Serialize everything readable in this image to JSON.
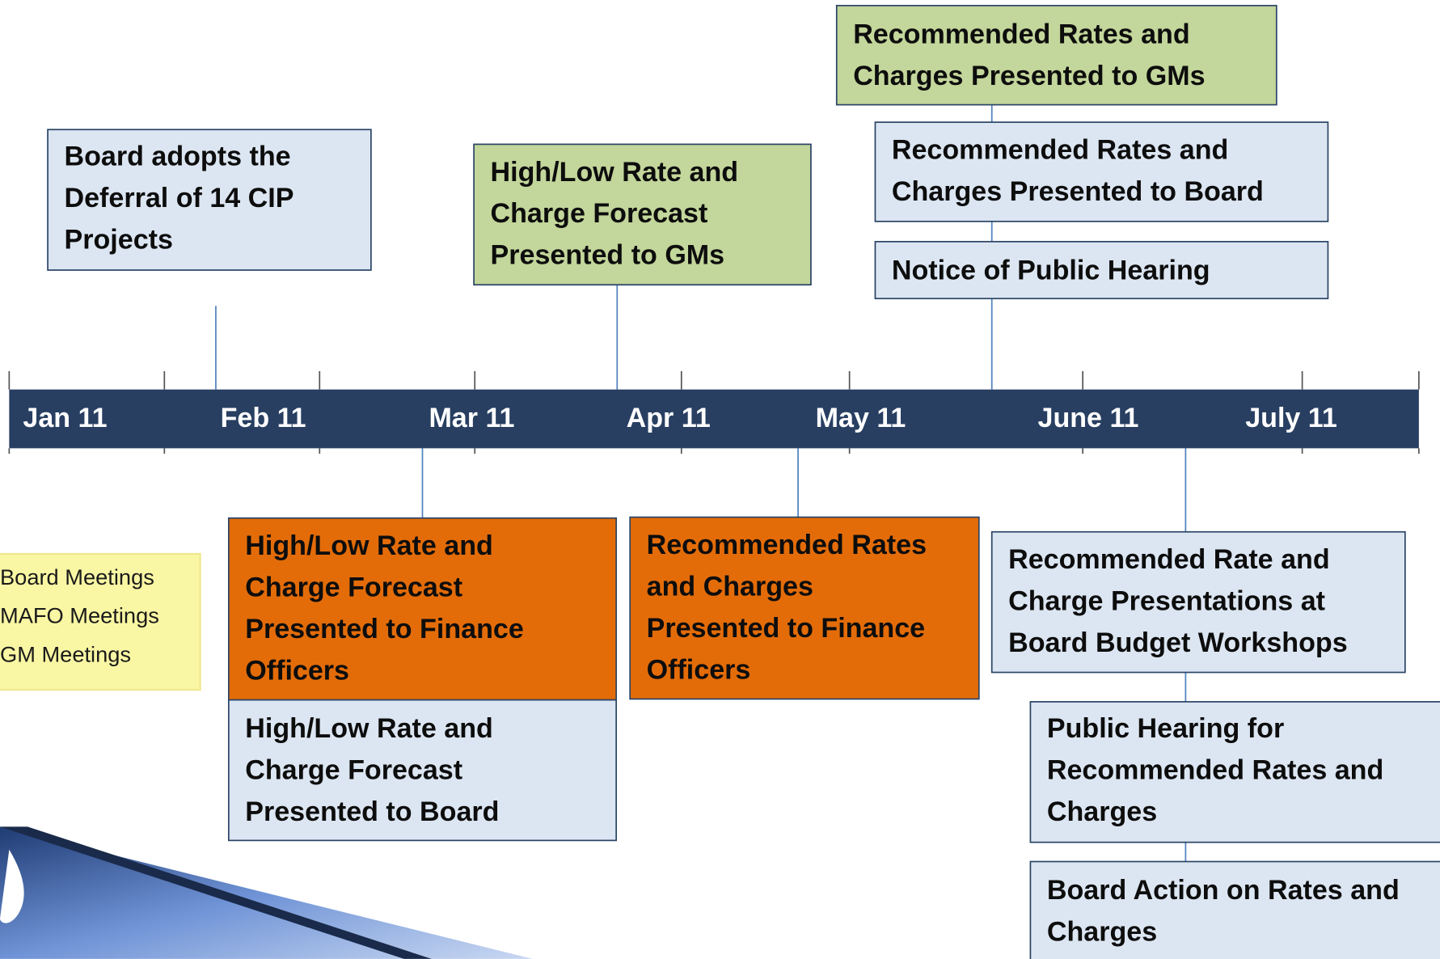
{
  "timeline": {
    "months": [
      "Jan 11",
      "Feb 11",
      "Mar 11",
      "Apr 11",
      "May 11",
      "June 11",
      "July 11"
    ]
  },
  "events": [
    {
      "lines": [
        "Board  adopts the",
        "Deferral of 14 CIP",
        "Projects"
      ]
    },
    {
      "lines": [
        "High/Low Rate and",
        "Charge Forecast",
        "Presented to GMs"
      ]
    },
    {
      "lines": [
        "Recommended Rates and",
        "Charges Presented to GMs"
      ]
    },
    {
      "lines": [
        "Recommended Rates and",
        "Charges Presented to Board"
      ]
    },
    {
      "lines": [
        "Notice of Public Hearing"
      ]
    },
    {
      "lines": [
        "High/Low Rate and",
        "Charge Forecast",
        "Presented  to Finance",
        "Officers"
      ]
    },
    {
      "lines": [
        "High/Low Rate and",
        "Charge Forecast",
        "Presented to Board"
      ]
    },
    {
      "lines": [
        "Recommended Rates",
        "and Charges",
        "Presented to  Finance",
        "Officers"
      ]
    },
    {
      "lines": [
        "Recommended Rate and",
        "Charge Presentations at",
        "Board Budget Workshops"
      ]
    },
    {
      "lines": [
        "Public Hearing for",
        "Recommended Rates and",
        "Charges"
      ]
    },
    {
      "lines": [
        "Board Action on Rates and",
        "Charges"
      ]
    }
  ],
  "legend": [
    "Board Meetings",
    "MAFO Meetings",
    "GM Meetings"
  ]
}
